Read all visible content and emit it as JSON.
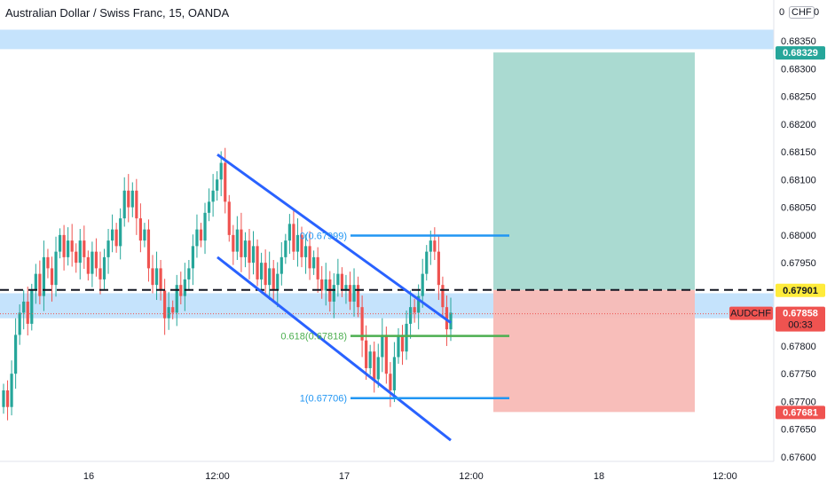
{
  "header": {
    "title": "Australian Dollar / Swiss Franc, 15, OANDA",
    "currency": "CHF",
    "currency_left": "0",
    "currency_right": "0"
  },
  "colors": {
    "bull": "#26a69a",
    "bear": "#ef5350",
    "channel": "#2962ff",
    "fib_blue": "#2196f3",
    "fib_green": "#4caf50",
    "zone": "#bbdefb",
    "target_zone": "#a5d8cf",
    "stop_zone": "#f8bbb6"
  },
  "chart_data": {
    "type": "candlestick",
    "ylim": [
      0.6757,
      0.6838
    ],
    "y_ticks": [
      "0.68350",
      "0.68300",
      "0.68250",
      "0.68200",
      "0.68150",
      "0.68100",
      "0.68050",
      "0.68000",
      "0.67950",
      "0.67900",
      "0.67850",
      "0.67800",
      "0.67750",
      "0.67700",
      "0.67650",
      "0.67600"
    ],
    "x_ticks": [
      "16",
      "12:00",
      "17",
      "12:00",
      "18",
      "12:00"
    ],
    "symbol": "AUDCHF",
    "countdown": "00:33",
    "price_labels": [
      {
        "value": "0.68329",
        "color": "#26a69a"
      },
      {
        "value": "0.67901",
        "color": "#ffeb3b"
      },
      {
        "value": "0.67858",
        "color": "#ef5350"
      },
      {
        "value": "0.67681",
        "color": "#ef5350"
      }
    ],
    "fib_levels": [
      {
        "label": "0(0.67999)",
        "price": 0.67999,
        "color": "#2196f3"
      },
      {
        "label": "0.618(0.67818)",
        "price": 0.67818,
        "color": "#4caf50"
      },
      {
        "label": "1(0.67706)",
        "price": 0.67706,
        "color": "#2196f3"
      }
    ],
    "zones": [
      {
        "from": 0.68335,
        "to": 0.6837,
        "color": "#bbdefb"
      },
      {
        "from": 0.6785,
        "to": 0.67895,
        "color": "#bbdefb"
      }
    ],
    "dashed_level": 0.67901,
    "current_price": 0.67858,
    "position": {
      "entry": 0.67901,
      "target": 0.68329,
      "stop": 0.67681
    },
    "channel": {
      "upper": [
        [
          0.68145,
          0.67842
        ]
      ],
      "lower": [
        [
          0.6796,
          0.6763
        ]
      ]
    },
    "candles_close": [
      0.6772,
      0.6769,
      0.6775,
      0.6782,
      0.6786,
      0.6788,
      0.6784,
      0.679,
      0.6793,
      0.6789,
      0.6796,
      0.6794,
      0.6791,
      0.6797,
      0.68,
      0.6796,
      0.6799,
      0.6797,
      0.6795,
      0.6799,
      0.6796,
      0.6793,
      0.6797,
      0.6794,
      0.6792,
      0.6796,
      0.6799,
      0.6801,
      0.6798,
      0.6803,
      0.6808,
      0.6805,
      0.6808,
      0.6803,
      0.6799,
      0.6801,
      0.6794,
      0.6791,
      0.6794,
      0.679,
      0.6785,
      0.6787,
      0.6786,
      0.6791,
      0.6789,
      0.6792,
      0.6794,
      0.6798,
      0.6801,
      0.6799,
      0.6804,
      0.6806,
      0.6808,
      0.681,
      0.6813,
      0.6806,
      0.68,
      0.6797,
      0.6801,
      0.6796,
      0.6799,
      0.6795,
      0.6798,
      0.6792,
      0.6795,
      0.6791,
      0.6794,
      0.679,
      0.6793,
      0.6796,
      0.6799,
      0.6802,
      0.6797,
      0.68,
      0.6796,
      0.6798,
      0.6794,
      0.6796,
      0.6792,
      0.679,
      0.6792,
      0.6788,
      0.6791,
      0.6793,
      0.679,
      0.6791,
      0.6788,
      0.6791,
      0.6787,
      0.6781,
      0.6776,
      0.6779,
      0.6774,
      0.6778,
      0.6782,
      0.6775,
      0.6772,
      0.6778,
      0.6782,
      0.6779,
      0.6784,
      0.6787,
      0.6786,
      0.6789,
      0.6793,
      0.6797,
      0.6799,
      0.6797,
      0.6791,
      0.6787,
      0.6783,
      0.6786
    ]
  }
}
